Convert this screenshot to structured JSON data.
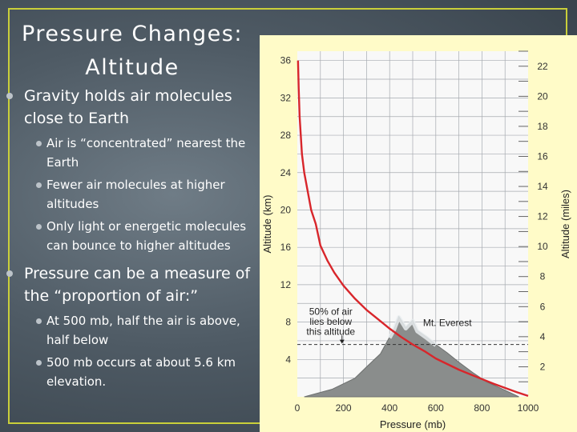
{
  "slide": {
    "title_lines": [
      "Pressure Changes:",
      "Altitude"
    ],
    "bullets": [
      {
        "text": "Gravity holds air molecules close to Earth",
        "sub": [
          "Air is “concentrated” nearest the Earth",
          "Fewer air molecules at higher altitudes",
          "Only light or energetic molecules can bounce to higher altitudes"
        ]
      },
      {
        "text": "Pressure can be a measure of the “proportion of air:”",
        "sub": [
          "At 500 mb, half the air is above, half below",
          "500 mb occurs at about 5.6 km elevation."
        ]
      }
    ]
  },
  "colors": {
    "curve": "#d8262b",
    "grid": "#a6aab0",
    "plot_bg": "#f8f8f8",
    "panel_bg": "#fffbc8",
    "mountain": "#8a8d8c",
    "snow": "#e7ecef"
  },
  "chart_data": {
    "type": "line",
    "title": "",
    "xlabel": "Pressure (mb)",
    "ylabel": "Altitude (km)",
    "y2label": "Altitude (miles)",
    "xlim": [
      0,
      1000
    ],
    "ylim": [
      0,
      37
    ],
    "y2lim": [
      0,
      23
    ],
    "x_ticks": [
      0,
      200,
      400,
      600,
      800,
      1000
    ],
    "y_ticks": [
      4,
      8,
      12,
      16,
      20,
      24,
      28,
      32,
      36
    ],
    "y2_ticks": [
      2,
      4,
      6,
      8,
      10,
      12,
      14,
      16,
      18,
      20,
      22
    ],
    "grid": true,
    "series": [
      {
        "x": [
          3,
          6,
          10,
          15,
          20,
          30,
          45,
          60,
          80,
          100,
          130,
          160,
          200,
          250,
          300,
          350,
          400,
          450,
          500,
          550,
          600,
          650,
          700,
          750,
          800,
          850,
          900,
          950,
          1000
        ],
        "y": [
          36,
          33,
          30,
          28,
          26,
          24,
          22,
          20,
          18.5,
          16.2,
          14.6,
          13.3,
          11.9,
          10.5,
          9.3,
          8.3,
          7.3,
          6.4,
          5.6,
          4.9,
          4.1,
          3.5,
          2.9,
          2.4,
          1.9,
          1.4,
          0.95,
          0.5,
          0.1
        ]
      }
    ],
    "annotations": [
      {
        "text_lines": [
          "50% of air",
          "lies below",
          "this altitude"
        ],
        "x": 145,
        "y": 8.8
      },
      {
        "text": "Mt. Everest",
        "x": 650,
        "y": 7.6
      }
    ],
    "reference_line": {
      "y": 5.6,
      "style": "dashed"
    },
    "mountain_profile": {
      "x": [
        30,
        150,
        250,
        300,
        360,
        400,
        420,
        440,
        470,
        500,
        520,
        560,
        600,
        650,
        700,
        760,
        820,
        900,
        960
      ],
      "y": [
        0,
        0.8,
        2.0,
        3.2,
        4.6,
        6.4,
        7.3,
        8.6,
        7.4,
        8.2,
        7.1,
        6.4,
        5.6,
        4.7,
        3.7,
        2.6,
        1.6,
        0.7,
        0
      ]
    }
  }
}
